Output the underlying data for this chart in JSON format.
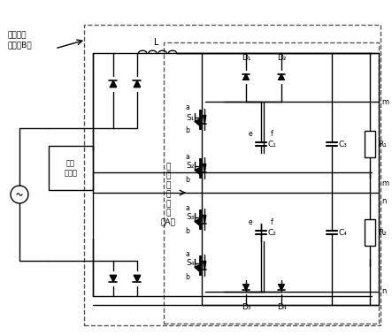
{
  "title": "",
  "bg_color": "#ffffff",
  "line_color": "#000000",
  "dashed_color": "#555555",
  "figsize": [
    4.43,
    3.79
  ],
  "dpi": 100,
  "labels": {
    "module_B": "第二模块\n单元（B）",
    "module_A": "第\n一\n模\n块\n单\n元\n（A）",
    "filter": "高频\n滤波器",
    "L": "L",
    "D1": "D₁",
    "D2": "D₂",
    "D3": "D₃",
    "D4": "D₄",
    "S1": "S₁",
    "S2": "S₂",
    "S3": "S₃",
    "S4": "S₄",
    "C1": "C₁",
    "C2": "C₂",
    "C3": "C₃",
    "C4": "C₄",
    "R1": "R₁",
    "R2": "R₂",
    "a1": "a",
    "b1": "b",
    "e1": "e",
    "f1": "f",
    "m1": "m",
    "n1": "n",
    "m2": "m",
    "n2": "n"
  }
}
